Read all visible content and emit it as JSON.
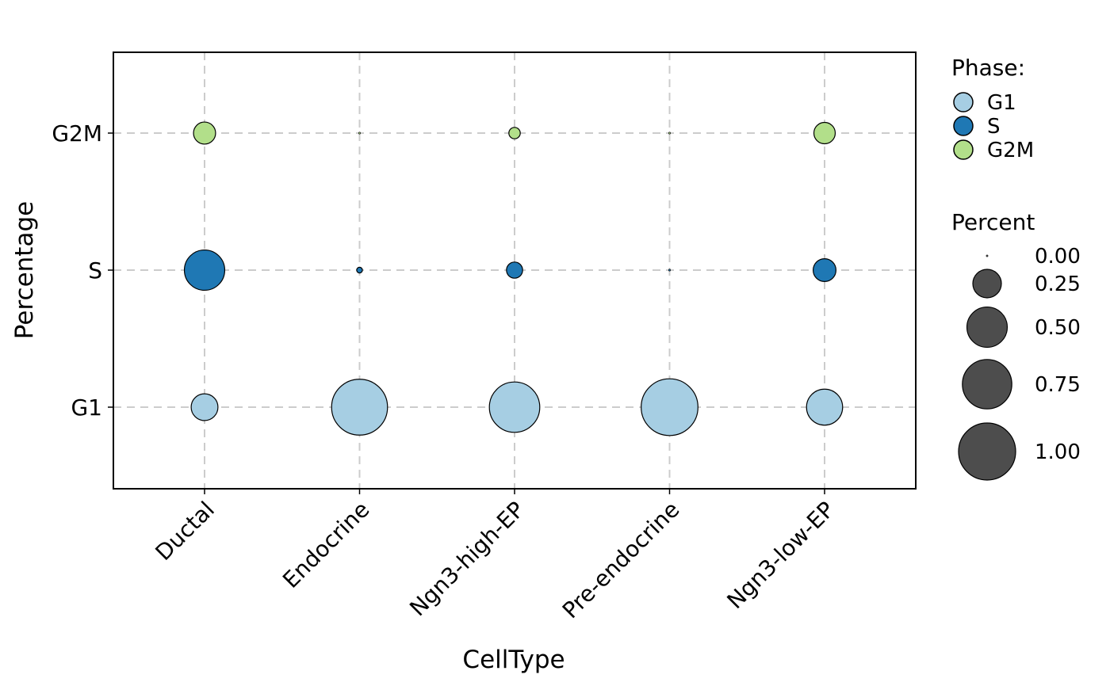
{
  "chart_data": {
    "type": "scatter",
    "xlabel": "CellType",
    "ylabel": "Percentage",
    "categories": [
      "Ductal",
      "Endocrine",
      "Ngn3-high-EP",
      "Pre-endocrine",
      "Ngn3-low-EP"
    ],
    "phases": [
      "G1",
      "S",
      "G2M"
    ],
    "phase_colors": {
      "G1": "#a6cee3",
      "S": "#1f78b4",
      "G2M": "#b2df8a"
    },
    "series": [
      {
        "name": "G1",
        "values": [
          0.22,
          0.96,
          0.78,
          0.99,
          0.4
        ]
      },
      {
        "name": "S",
        "values": [
          0.5,
          0.01,
          0.08,
          0.001,
          0.16
        ]
      },
      {
        "name": "G2M",
        "values": [
          0.15,
          0.001,
          0.04,
          0.001,
          0.14
        ]
      }
    ],
    "grid": true,
    "legend": {
      "position": "right",
      "color_title": "Phase:",
      "size_title": "Percent",
      "size_breaks": [
        0.0,
        0.25,
        0.5,
        0.75,
        1.0
      ],
      "size_labels": [
        "0.00",
        "0.25",
        "0.50",
        "0.75",
        "1.00"
      ],
      "size_swatch_color": "#4d4d4d"
    }
  }
}
